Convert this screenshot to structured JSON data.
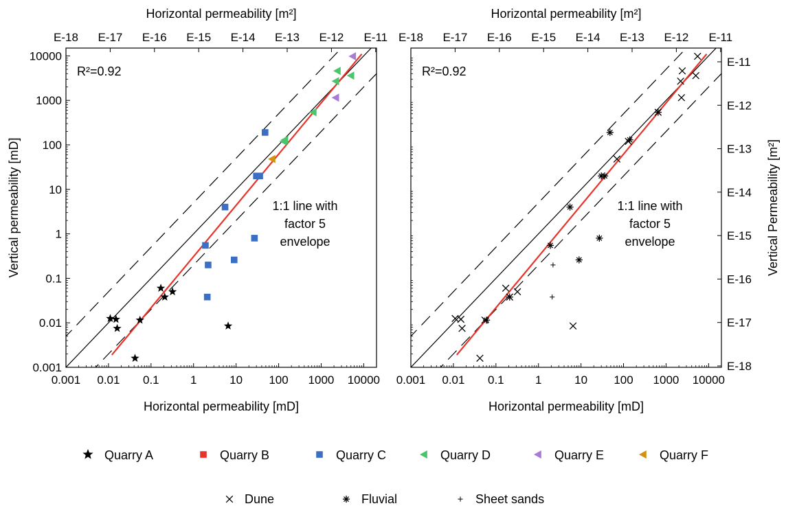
{
  "chart_data": [
    {
      "type": "scatter",
      "panel": "left",
      "xlabel": "Horizontal permeability [mD]",
      "ylabel": "Vertical permeability [mD]",
      "top_xlabel": "Horizontal permeability [m²]",
      "right_ylabel": "",
      "xscale": "log",
      "yscale": "log",
      "xlim": [
        0.001,
        20000
      ],
      "ylim": [
        0.001,
        15000
      ],
      "x_ticks": [
        "0.001",
        "0.01",
        "0.1",
        "1",
        "10",
        "100",
        "1000",
        "10000"
      ],
      "y_ticks": [
        "0.001",
        "0.01",
        "0.1",
        "1",
        "10",
        "100",
        "1000",
        "10000"
      ],
      "top_ticks": [
        "E-18",
        "E-17",
        "E-16",
        "E-15",
        "E-14",
        "E-13",
        "E-12",
        "E-11"
      ],
      "right_ticks": [],
      "r2_label": "R²=0.92",
      "annotation": [
        "1:1 line with",
        "factor 5",
        "envelope"
      ],
      "reference_lines": {
        "one_to_one": true,
        "envelope_factor": 5
      },
      "fit_line": {
        "color": "#e8332a",
        "x": [
          0.012,
          9000
        ],
        "y": [
          0.0019,
          11000
        ]
      },
      "series": [
        {
          "name": "Quarry A",
          "marker": "star",
          "color": "#000000",
          "x": [
            0.011,
            0.015,
            0.016,
            0.055,
            0.17,
            0.21,
            0.32,
            0.042,
            6.5
          ],
          "y": [
            0.0125,
            0.012,
            0.0075,
            0.0115,
            0.06,
            0.038,
            0.05,
            0.0016,
            0.0085
          ]
        },
        {
          "name": "Quarry B",
          "marker": "square",
          "color": "#e8332a",
          "x": [],
          "y": []
        },
        {
          "name": "Quarry C",
          "marker": "square",
          "color": "#3a6fc4",
          "x": [
            1.9,
            2.2,
            2.1,
            5.5,
            9.0,
            27,
            30,
            36,
            48
          ],
          "y": [
            0.55,
            0.2,
            0.038,
            4.0,
            0.26,
            0.8,
            20,
            20,
            190
          ]
        },
        {
          "name": "Quarry D",
          "marker": "triangle-left",
          "color": "#4cc46c",
          "x": [
            130,
            140,
            650,
            2200,
            2400,
            5000
          ],
          "y": [
            120,
            130,
            540,
            2700,
            4600,
            3600
          ]
        },
        {
          "name": "Quarry E",
          "marker": "triangle-left",
          "color": "#a97ad8",
          "x": [
            2200,
            5500
          ],
          "y": [
            1150,
            9800
          ]
        },
        {
          "name": "Quarry F",
          "marker": "triangle-left",
          "color": "#d0920f",
          "x": [
            70
          ],
          "y": [
            48
          ]
        }
      ]
    },
    {
      "type": "scatter",
      "panel": "right",
      "xlabel": "Horizontal permeability [mD]",
      "ylabel": "",
      "top_xlabel": "Horizontal permeability [m²]",
      "right_ylabel": "Vertical Permeability [m²]",
      "xscale": "log",
      "yscale": "log",
      "xlim": [
        0.001,
        20000
      ],
      "ylim": [
        0.001,
        15000
      ],
      "x_ticks": [
        "0.001",
        "0.01",
        "0.1",
        "1",
        "10",
        "100",
        "1000",
        "10000"
      ],
      "y_ticks": [],
      "top_ticks": [
        "E-18",
        "E-17",
        "E-16",
        "E-15",
        "E-14",
        "E-13",
        "E-12",
        "E-11"
      ],
      "right_ticks": [
        "E-18",
        "E-17",
        "E-16",
        "E-15",
        "E-14",
        "E-13",
        "E-12",
        "E-11"
      ],
      "r2_label": "R²=0.92",
      "annotation": [
        "1:1 line with",
        "factor 5",
        "envelope"
      ],
      "reference_lines": {
        "one_to_one": true,
        "envelope_factor": 5
      },
      "fit_line": {
        "color": "#e8332a",
        "x": [
          0.012,
          9000
        ],
        "y": [
          0.0019,
          11000
        ]
      },
      "series": [
        {
          "name": "Dune",
          "marker": "x",
          "color": "#000000",
          "x": [
            0.011,
            0.015,
            0.016,
            0.055,
            0.17,
            0.21,
            0.32,
            0.042,
            6.5,
            2200,
            2400,
            5000,
            5500,
            650,
            130,
            70,
            2300
          ],
          "y": [
            0.0125,
            0.012,
            0.0075,
            0.0115,
            0.06,
            0.038,
            0.05,
            0.0016,
            0.0085,
            2700,
            4600,
            3600,
            9800,
            540,
            120,
            48,
            1150
          ]
        },
        {
          "name": "Fluvial",
          "marker": "asterisk",
          "color": "#000000",
          "x": [
            0.06,
            1.9,
            5.5,
            9.0,
            27,
            30,
            36,
            48,
            650,
            140,
            0.21
          ],
          "y": [
            0.0115,
            0.55,
            4.0,
            0.26,
            0.8,
            20,
            20,
            190,
            540,
            130,
            0.038
          ]
        },
        {
          "name": "Sheet sands",
          "marker": "plus",
          "color": "#000000",
          "x": [
            2.2,
            2.1
          ],
          "y": [
            0.2,
            0.038
          ]
        }
      ]
    }
  ],
  "legend": {
    "row1": [
      {
        "label": "Quarry A",
        "marker": "star",
        "color": "#000000"
      },
      {
        "label": "Quarry B",
        "marker": "square",
        "color": "#e8332a"
      },
      {
        "label": "Quarry C",
        "marker": "square",
        "color": "#3a6fc4"
      },
      {
        "label": "Quarry D",
        "marker": "triangle-left",
        "color": "#4cc46c"
      },
      {
        "label": "Quarry E",
        "marker": "triangle-left",
        "color": "#a97ad8"
      },
      {
        "label": "Quarry F",
        "marker": "triangle-left",
        "color": "#d0920f"
      }
    ],
    "row2": [
      {
        "label": "Dune",
        "marker": "x",
        "color": "#000000"
      },
      {
        "label": "Fluvial",
        "marker": "asterisk",
        "color": "#000000"
      },
      {
        "label": "Sheet sands",
        "marker": "plus",
        "color": "#000000"
      }
    ]
  }
}
